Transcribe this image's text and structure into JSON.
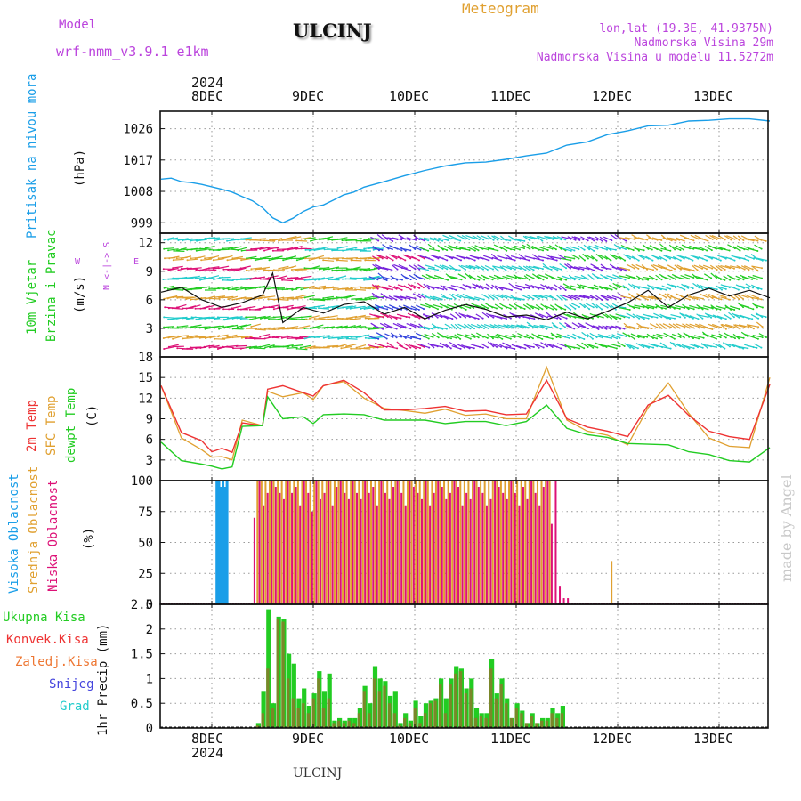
{
  "header": {
    "model_label": "Model",
    "model_name": "wrf-nmm_v3.9.1 e1km",
    "title": "ULCINJ",
    "meteogram": "Meteogram",
    "lonlat": "lon,lat (19.3E, 41.9375N)",
    "elev": "Nadmorska Visina 29m",
    "elev_model": "Nadmorska Visina u modelu 11.5272m",
    "footer": "ULCINJ",
    "watermark": "made by Angel"
  },
  "colors": {
    "pressure": "#1a9ee8",
    "t2m": "#ee3333",
    "sfc": "#e0a030",
    "dewpt": "#22cc22",
    "high_cloud": "#1a9ee8",
    "mid_cloud": "#e0a030",
    "low_cloud": "#dd1177",
    "rain_total": "#22cc22",
    "rain_conv": "#ee3333",
    "rain_frozen": "#ee7733",
    "snow": "#4444dd",
    "grad": "#22cccc",
    "wind_cal": "#22cc22",
    "wind_title": "#22cc22",
    "compass": "#bb44dd"
  },
  "time_axis": {
    "top_year": "2024",
    "bottom_year": "2024",
    "labels": [
      "8DEC",
      "9DEC",
      "10DEC",
      "11DEC",
      "12DEC",
      "13DEC"
    ]
  },
  "panels": {
    "pressure": {
      "title": "Pritisak na nivou mora",
      "unit": "(hPa)"
    },
    "wind": {
      "title1": "10m Vjetar",
      "title2": "Brzina i Pravac",
      "unit": "(m/s)",
      "compass_ns": "N <-|-> S",
      "compass_w": "W",
      "compass_e": "E"
    },
    "temp": {
      "title1": "2m Temp",
      "title2": "SFC Temp",
      "title3": "dewpt Temp",
      "unit": "(C)"
    },
    "cloud": {
      "title1": "Visoka Oblacnost",
      "title2": "Srednja Oblacnost",
      "title3": "Niska Oblacnost",
      "unit": "(%)"
    },
    "precip": {
      "legend": [
        "Ukupna Kisa",
        "Konvek.Kisa",
        "Zaledj.Kisa",
        "Snijeg",
        "Grad"
      ],
      "unit": "1hr Precip (mm)"
    }
  },
  "chart_data": [
    {
      "type": "line",
      "name": "pressure",
      "ylabel": "(hPa)",
      "ylim": [
        996,
        1031
      ],
      "yticks": [
        999,
        1008,
        1017,
        1026
      ],
      "x_unit": "days since 7DEC 12UTC",
      "x": [
        0.0,
        0.1,
        0.2,
        0.3,
        0.4,
        0.5,
        0.6,
        0.7,
        0.8,
        0.9,
        1.0,
        1.1,
        1.2,
        1.3,
        1.4,
        1.5,
        1.6,
        1.7,
        1.8,
        1.9,
        2.0,
        2.2,
        2.4,
        2.6,
        2.8,
        3.0,
        3.2,
        3.4,
        3.6,
        3.8,
        4.0,
        4.2,
        4.4,
        4.6,
        4.8,
        5.0,
        5.2,
        5.4,
        5.6,
        5.8,
        6.0
      ],
      "series": [
        {
          "name": "Pritisak na nivou mora",
          "values": [
            1011.5,
            1011.8,
            1010.8,
            1010.5,
            1010.0,
            1009.3,
            1008.6,
            1007.8,
            1006.5,
            1005.3,
            1003.3,
            1000.4,
            999.0,
            1000.3,
            1002.2,
            1003.5,
            1004.1,
            1005.5,
            1007.0,
            1007.8,
            1009.2,
            1010.8,
            1012.5,
            1014.0,
            1015.3,
            1016.2,
            1016.4,
            1017.2,
            1018.2,
            1019.0,
            1021.3,
            1022.2,
            1024.3,
            1025.4,
            1026.8,
            1027.0,
            1028.2,
            1028.4,
            1028.8,
            1028.8,
            1028.2
          ]
        }
      ]
    },
    {
      "type": "line",
      "name": "wind",
      "ylabel": "(m/s)",
      "ylim": [
        0,
        13
      ],
      "yticks": [
        3,
        6,
        9,
        12
      ],
      "x_unit": "days since 7DEC 12UTC",
      "x": [
        0.0,
        0.2,
        0.4,
        0.6,
        0.8,
        1.0,
        1.1,
        1.2,
        1.4,
        1.6,
        1.8,
        2.0,
        2.2,
        2.4,
        2.6,
        2.8,
        3.0,
        3.2,
        3.4,
        3.6,
        3.8,
        4.0,
        4.2,
        4.4,
        4.6,
        4.8,
        5.0,
        5.2,
        5.4,
        5.6,
        5.8,
        6.0
      ],
      "series": [
        {
          "name": "10m Vjetar",
          "values": [
            6.8,
            7.3,
            6.0,
            5.2,
            5.7,
            6.5,
            8.8,
            3.6,
            5.2,
            4.6,
            5.5,
            5.8,
            4.5,
            5.2,
            4.0,
            4.9,
            5.5,
            5.0,
            4.2,
            4.4,
            3.9,
            4.7,
            4.0,
            4.8,
            5.7,
            7.0,
            5.2,
            6.5,
            7.2,
            6.4,
            7.0,
            6.2
          ]
        }
      ]
    },
    {
      "type": "line",
      "name": "temperature",
      "ylabel": "(C)",
      "ylim": [
        0,
        18
      ],
      "yticks": [
        3,
        6,
        9,
        12,
        15,
        18
      ],
      "x_unit": "days since 7DEC 12UTC",
      "x": [
        0.0,
        0.2,
        0.4,
        0.5,
        0.6,
        0.7,
        0.8,
        1.0,
        1.05,
        1.2,
        1.4,
        1.5,
        1.6,
        1.8,
        2.0,
        2.2,
        2.4,
        2.6,
        2.8,
        3.0,
        3.2,
        3.4,
        3.6,
        3.8,
        4.0,
        4.2,
        4.4,
        4.6,
        4.8,
        5.0,
        5.2,
        5.4,
        5.6,
        5.8,
        6.0
      ],
      "series": [
        {
          "name": "2m Temp",
          "values": [
            13.8,
            7.0,
            5.8,
            4.2,
            4.7,
            4.1,
            8.4,
            8.0,
            13.3,
            13.8,
            12.8,
            12.3,
            13.8,
            14.6,
            12.8,
            10.3,
            10.3,
            10.5,
            10.8,
            10.1,
            10.2,
            9.6,
            9.7,
            14.6,
            9.0,
            7.8,
            7.2,
            6.4,
            11.0,
            12.4,
            9.5,
            7.2,
            6.4,
            6.0,
            14.0
          ]
        },
        {
          "name": "SFC Temp",
          "values": [
            13.8,
            6.2,
            4.5,
            3.4,
            3.5,
            3.0,
            8.8,
            8.0,
            13.0,
            12.2,
            12.8,
            11.8,
            13.8,
            14.4,
            12.0,
            10.5,
            10.2,
            9.8,
            10.4,
            9.5,
            9.7,
            9.0,
            9.0,
            16.5,
            8.8,
            7.2,
            6.6,
            5.2,
            10.6,
            14.2,
            9.8,
            6.2,
            5.0,
            4.8,
            15.0
          ]
        },
        {
          "name": "dewpt Temp",
          "values": [
            5.6,
            2.9,
            2.4,
            2.1,
            1.7,
            2.0,
            7.9,
            8.0,
            12.2,
            9.0,
            9.3,
            8.3,
            9.6,
            9.7,
            9.6,
            8.8,
            8.8,
            8.8,
            8.3,
            8.6,
            8.6,
            8.0,
            8.6,
            11.0,
            7.6,
            6.7,
            6.3,
            5.4,
            5.3,
            5.2,
            4.2,
            3.8,
            2.9,
            2.7,
            4.8
          ]
        }
      ]
    },
    {
      "type": "bar",
      "name": "cloud_cover",
      "ylabel": "(%)",
      "ylim": [
        0,
        100
      ],
      "yticks": [
        0,
        25,
        50,
        75,
        100
      ],
      "x_unit": "days since 7DEC 12UTC",
      "series": [
        {
          "name": "Visoka Oblacnost",
          "x": [
            0.55,
            0.57,
            0.59,
            0.61,
            0.63,
            0.65
          ],
          "values": [
            100,
            100,
            95,
            100,
            95,
            100
          ]
        },
        {
          "name": "Srednja Oblacnost",
          "x": [
            0.95,
            0.99,
            1.03,
            1.07,
            1.11,
            1.15,
            1.19,
            1.23,
            1.27,
            1.31,
            1.35,
            1.39,
            1.43,
            1.47,
            1.51,
            1.55,
            1.59,
            1.63,
            1.67,
            1.71,
            1.75,
            1.79,
            1.83,
            1.87,
            1.91,
            1.95,
            1.99,
            2.03,
            2.07,
            2.11,
            2.15,
            2.19,
            2.23,
            2.27,
            2.31,
            2.35,
            2.39,
            2.43,
            2.47,
            2.51,
            2.55,
            2.59,
            2.63,
            2.67,
            2.71,
            2.75,
            2.79,
            2.83,
            2.87,
            2.91,
            2.95,
            2.99,
            3.03,
            3.07,
            3.11,
            3.15,
            3.19,
            3.23,
            3.27,
            3.31,
            3.35,
            3.39,
            3.43,
            3.47,
            3.51,
            3.55,
            3.59,
            3.63,
            3.67,
            3.71,
            3.75,
            3.79,
            3.83,
            4.44
          ],
          "values": [
            100,
            100,
            100,
            100,
            100,
            100,
            100,
            100,
            100,
            100,
            100,
            100,
            100,
            100,
            100,
            100,
            100,
            100,
            100,
            100,
            100,
            100,
            100,
            100,
            100,
            100,
            100,
            100,
            100,
            100,
            100,
            100,
            100,
            100,
            100,
            100,
            100,
            100,
            100,
            100,
            100,
            100,
            100,
            100,
            100,
            100,
            100,
            100,
            100,
            100,
            100,
            100,
            100,
            100,
            100,
            100,
            100,
            100,
            100,
            100,
            100,
            100,
            100,
            100,
            100,
            100,
            100,
            100,
            100,
            100,
            100,
            100,
            100,
            35
          ]
        },
        {
          "name": "Niska Oblacnost",
          "x": [
            0.92,
            0.97,
            1.01,
            1.05,
            1.09,
            1.13,
            1.17,
            1.21,
            1.25,
            1.29,
            1.33,
            1.37,
            1.41,
            1.45,
            1.49,
            1.53,
            1.57,
            1.61,
            1.65,
            1.69,
            1.73,
            1.77,
            1.81,
            1.85,
            1.89,
            1.93,
            1.97,
            2.01,
            2.05,
            2.09,
            2.13,
            2.17,
            2.21,
            2.25,
            2.29,
            2.33,
            2.37,
            2.41,
            2.45,
            2.49,
            2.53,
            2.57,
            2.61,
            2.65,
            2.69,
            2.73,
            2.77,
            2.81,
            2.85,
            2.89,
            2.93,
            2.97,
            3.01,
            3.05,
            3.09,
            3.13,
            3.17,
            3.21,
            3.25,
            3.29,
            3.33,
            3.37,
            3.41,
            3.45,
            3.49,
            3.53,
            3.57,
            3.61,
            3.65,
            3.69,
            3.73,
            3.77,
            3.81,
            3.85,
            3.89,
            3.93,
            3.97,
            4.01
          ],
          "values": [
            70,
            100,
            80,
            90,
            100,
            95,
            90,
            85,
            100,
            90,
            95,
            80,
            100,
            90,
            75,
            100,
            85,
            90,
            100,
            80,
            95,
            100,
            90,
            85,
            100,
            90,
            85,
            100,
            90,
            95,
            80,
            100,
            90,
            85,
            95,
            100,
            90,
            80,
            100,
            95,
            90,
            85,
            100,
            80,
            90,
            100,
            95,
            85,
            90,
            100,
            95,
            80,
            90,
            85,
            100,
            95,
            90,
            80,
            85,
            100,
            95,
            90,
            85,
            100,
            90,
            80,
            95,
            85,
            100,
            90,
            80,
            95,
            100,
            65,
            100,
            15,
            5,
            5
          ]
        }
      ]
    },
    {
      "type": "bar",
      "name": "precipitation",
      "ylabel": "1hr Precip (mm)",
      "ylim": [
        0,
        2.5
      ],
      "yticks": [
        0,
        0.5,
        1,
        1.5,
        2,
        2.5
      ],
      "x_unit": "days since 7DEC 12UTC",
      "x": [
        0.96,
        1.01,
        1.06,
        1.11,
        1.16,
        1.21,
        1.26,
        1.31,
        1.36,
        1.41,
        1.46,
        1.51,
        1.56,
        1.61,
        1.66,
        1.71,
        1.76,
        1.81,
        1.86,
        1.91,
        1.96,
        2.01,
        2.06,
        2.11,
        2.16,
        2.21,
        2.26,
        2.31,
        2.36,
        2.41,
        2.46,
        2.51,
        2.56,
        2.61,
        2.66,
        2.71,
        2.76,
        2.81,
        2.86,
        2.91,
        2.96,
        3.01,
        3.06,
        3.11,
        3.16,
        3.21,
        3.26,
        3.31,
        3.36,
        3.41,
        3.46,
        3.51,
        3.56,
        3.61,
        3.66,
        3.71,
        3.76,
        3.81,
        3.86,
        3.91,
        3.96
      ],
      "series": [
        {
          "name": "Ukupna Kisa",
          "values": [
            0.1,
            0.75,
            2.4,
            0.5,
            2.25,
            2.2,
            1.5,
            1.3,
            0.6,
            0.8,
            0.45,
            0.7,
            1.15,
            0.75,
            1.1,
            0.15,
            0.2,
            0.15,
            0.2,
            0.2,
            0.4,
            0.85,
            0.5,
            1.25,
            1.0,
            0.95,
            0.65,
            0.75,
            0.1,
            0.3,
            0.15,
            0.55,
            0.25,
            0.5,
            0.55,
            0.6,
            1.0,
            0.6,
            1.0,
            1.25,
            1.2,
            0.8,
            1.0,
            0.4,
            0.3,
            0.3,
            1.4,
            0.7,
            1.0,
            0.6,
            0.2,
            0.5,
            0.35,
            0.1,
            0.3,
            0.1,
            0.2,
            0.2,
            0.4,
            0.3,
            0.45
          ]
        },
        {
          "name": "Konvek.Kisa",
          "values": [
            0.05,
            0.3,
            1.2,
            0.4,
            2.2,
            2.15,
            1.0,
            0.6,
            0.4,
            0.5,
            0.3,
            0.6,
            1.0,
            0.4,
            0.6,
            0.1,
            0.15,
            0.1,
            0.15,
            0.1,
            0.3,
            0.75,
            0.3,
            1.0,
            0.75,
            0.85,
            0.5,
            0.3,
            0.05,
            0.2,
            0.1,
            0.4,
            0.1,
            0.3,
            0.5,
            0.55,
            0.9,
            0.3,
            0.9,
            1.1,
            1.15,
            0.7,
            0.8,
            0.2,
            0.25,
            0.2,
            1.2,
            0.6,
            0.9,
            0.5,
            0.2,
            0.4,
            0.3,
            0.1,
            0.25,
            0.1,
            0.15,
            0.15,
            0.3,
            0.2,
            0.3
          ]
        }
      ]
    }
  ]
}
